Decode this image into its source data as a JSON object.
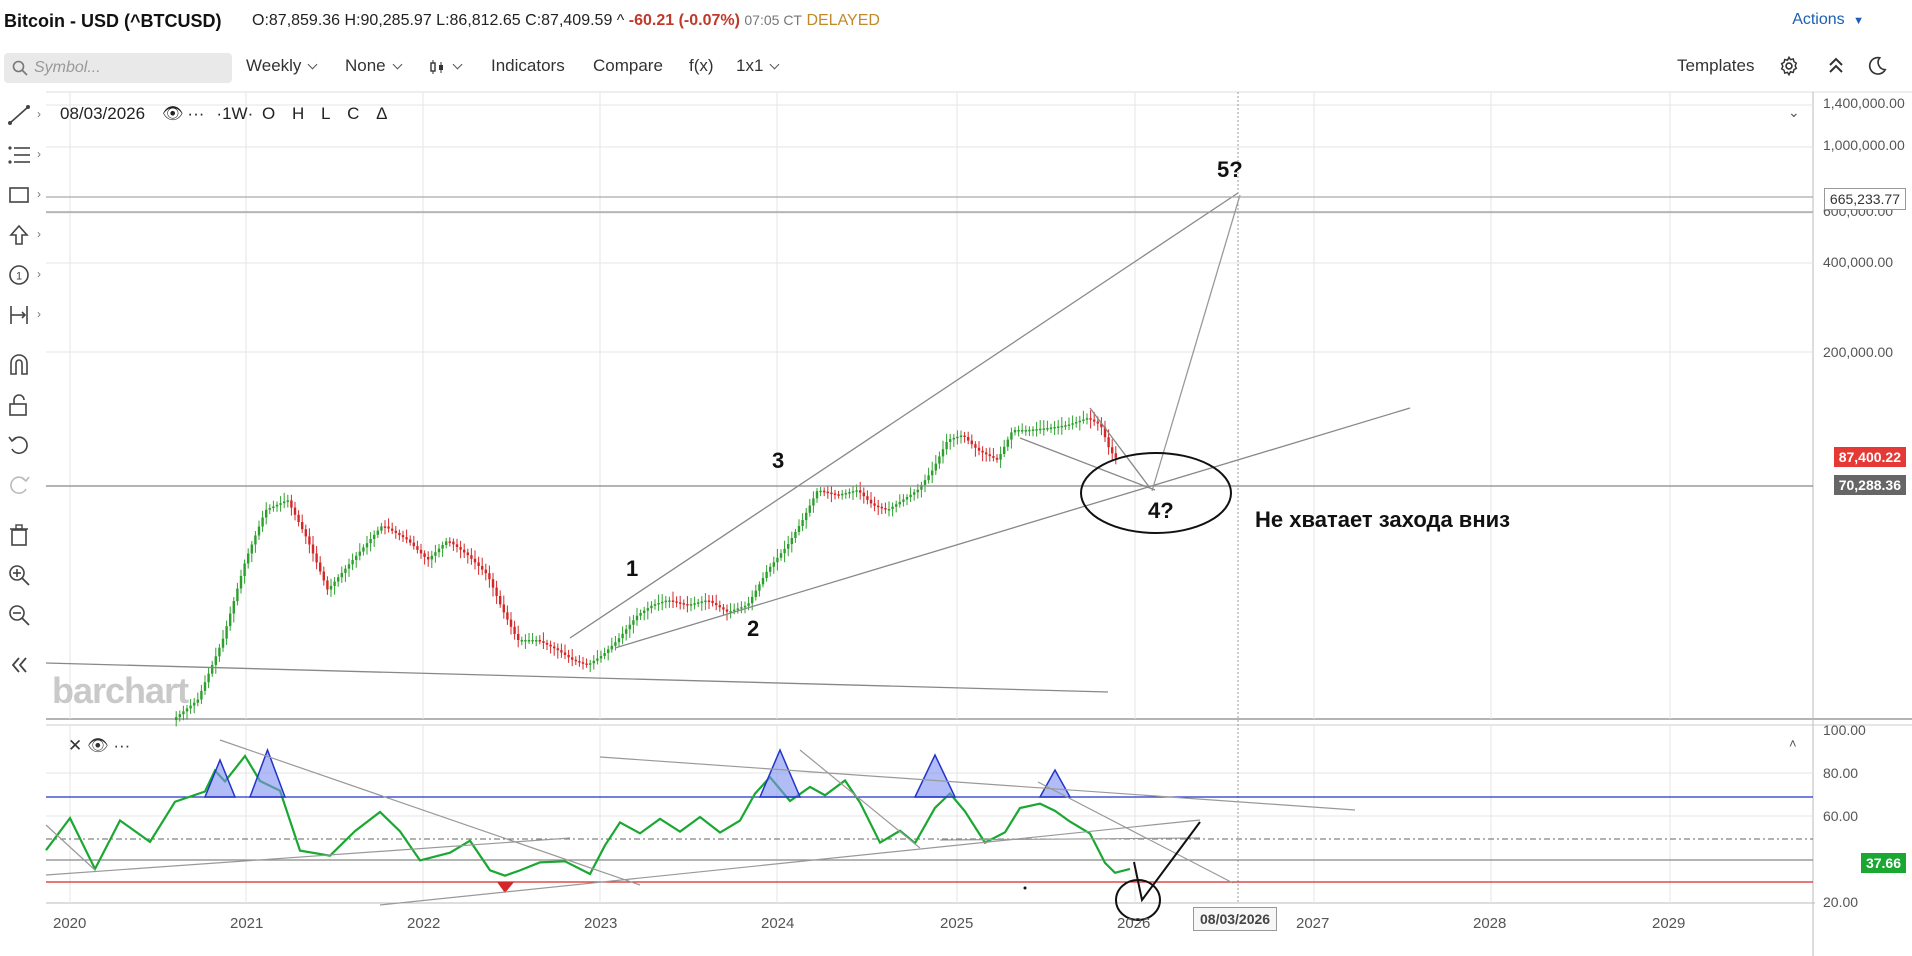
{
  "header": {
    "title": "Bitcoin - USD (^BTCUSD)",
    "open": "O:87,859.36",
    "high": "H:90,285.97",
    "low": "L:86,812.65",
    "close": "C:87,409.59",
    "change_arrow": "^",
    "change": "-60.21 (-0.07%)",
    "time": "07:05 CT",
    "delayed": "DELAYED",
    "actions": "Actions"
  },
  "toolbar": {
    "symbol_placeholder": "Symbol...",
    "period": "Weekly",
    "none": "None",
    "indicators": "Indicators",
    "compare": "Compare",
    "fx": "f(x)",
    "layout": "1x1",
    "templates": "Templates"
  },
  "legend": {
    "date": "08/03/2026",
    "dots": "···",
    "interval": "·1W·",
    "o": "O",
    "h": "H",
    "l": "L",
    "c": "C",
    "delta": "Δ"
  },
  "price_axis": [
    "1,400,000.00",
    "1,000,000.00",
    "600,000.00",
    "400,000.00",
    "200,000.00"
  ],
  "price_boxes": {
    "crosshair": "665,233.77",
    "last": "87,400.22",
    "level": "70,288.36"
  },
  "rsi_axis": [
    "100.00",
    "80.00",
    "60.00",
    "20.00"
  ],
  "rsi_value": "37.66",
  "years": [
    "2020",
    "2021",
    "2022",
    "2023",
    "2024",
    "2025",
    "2026",
    "2027",
    "2028",
    "2029"
  ],
  "cursor_date": "08/03/2026",
  "watermark": "barchart",
  "annotations": {
    "w1": "1",
    "w2": "2",
    "w3": "3",
    "w4": "4?",
    "w5": "5?",
    "note": "Не хватает захода вниз"
  },
  "colors": {
    "up": "#2ca02c",
    "down": "#d62728",
    "rsi": "#1aa832",
    "overbought": "#2233cc",
    "oversold": "#d62728",
    "last_price_bg": "#e53935",
    "rsi_box_bg": "#1aa832",
    "level_bg": "#666666"
  }
}
